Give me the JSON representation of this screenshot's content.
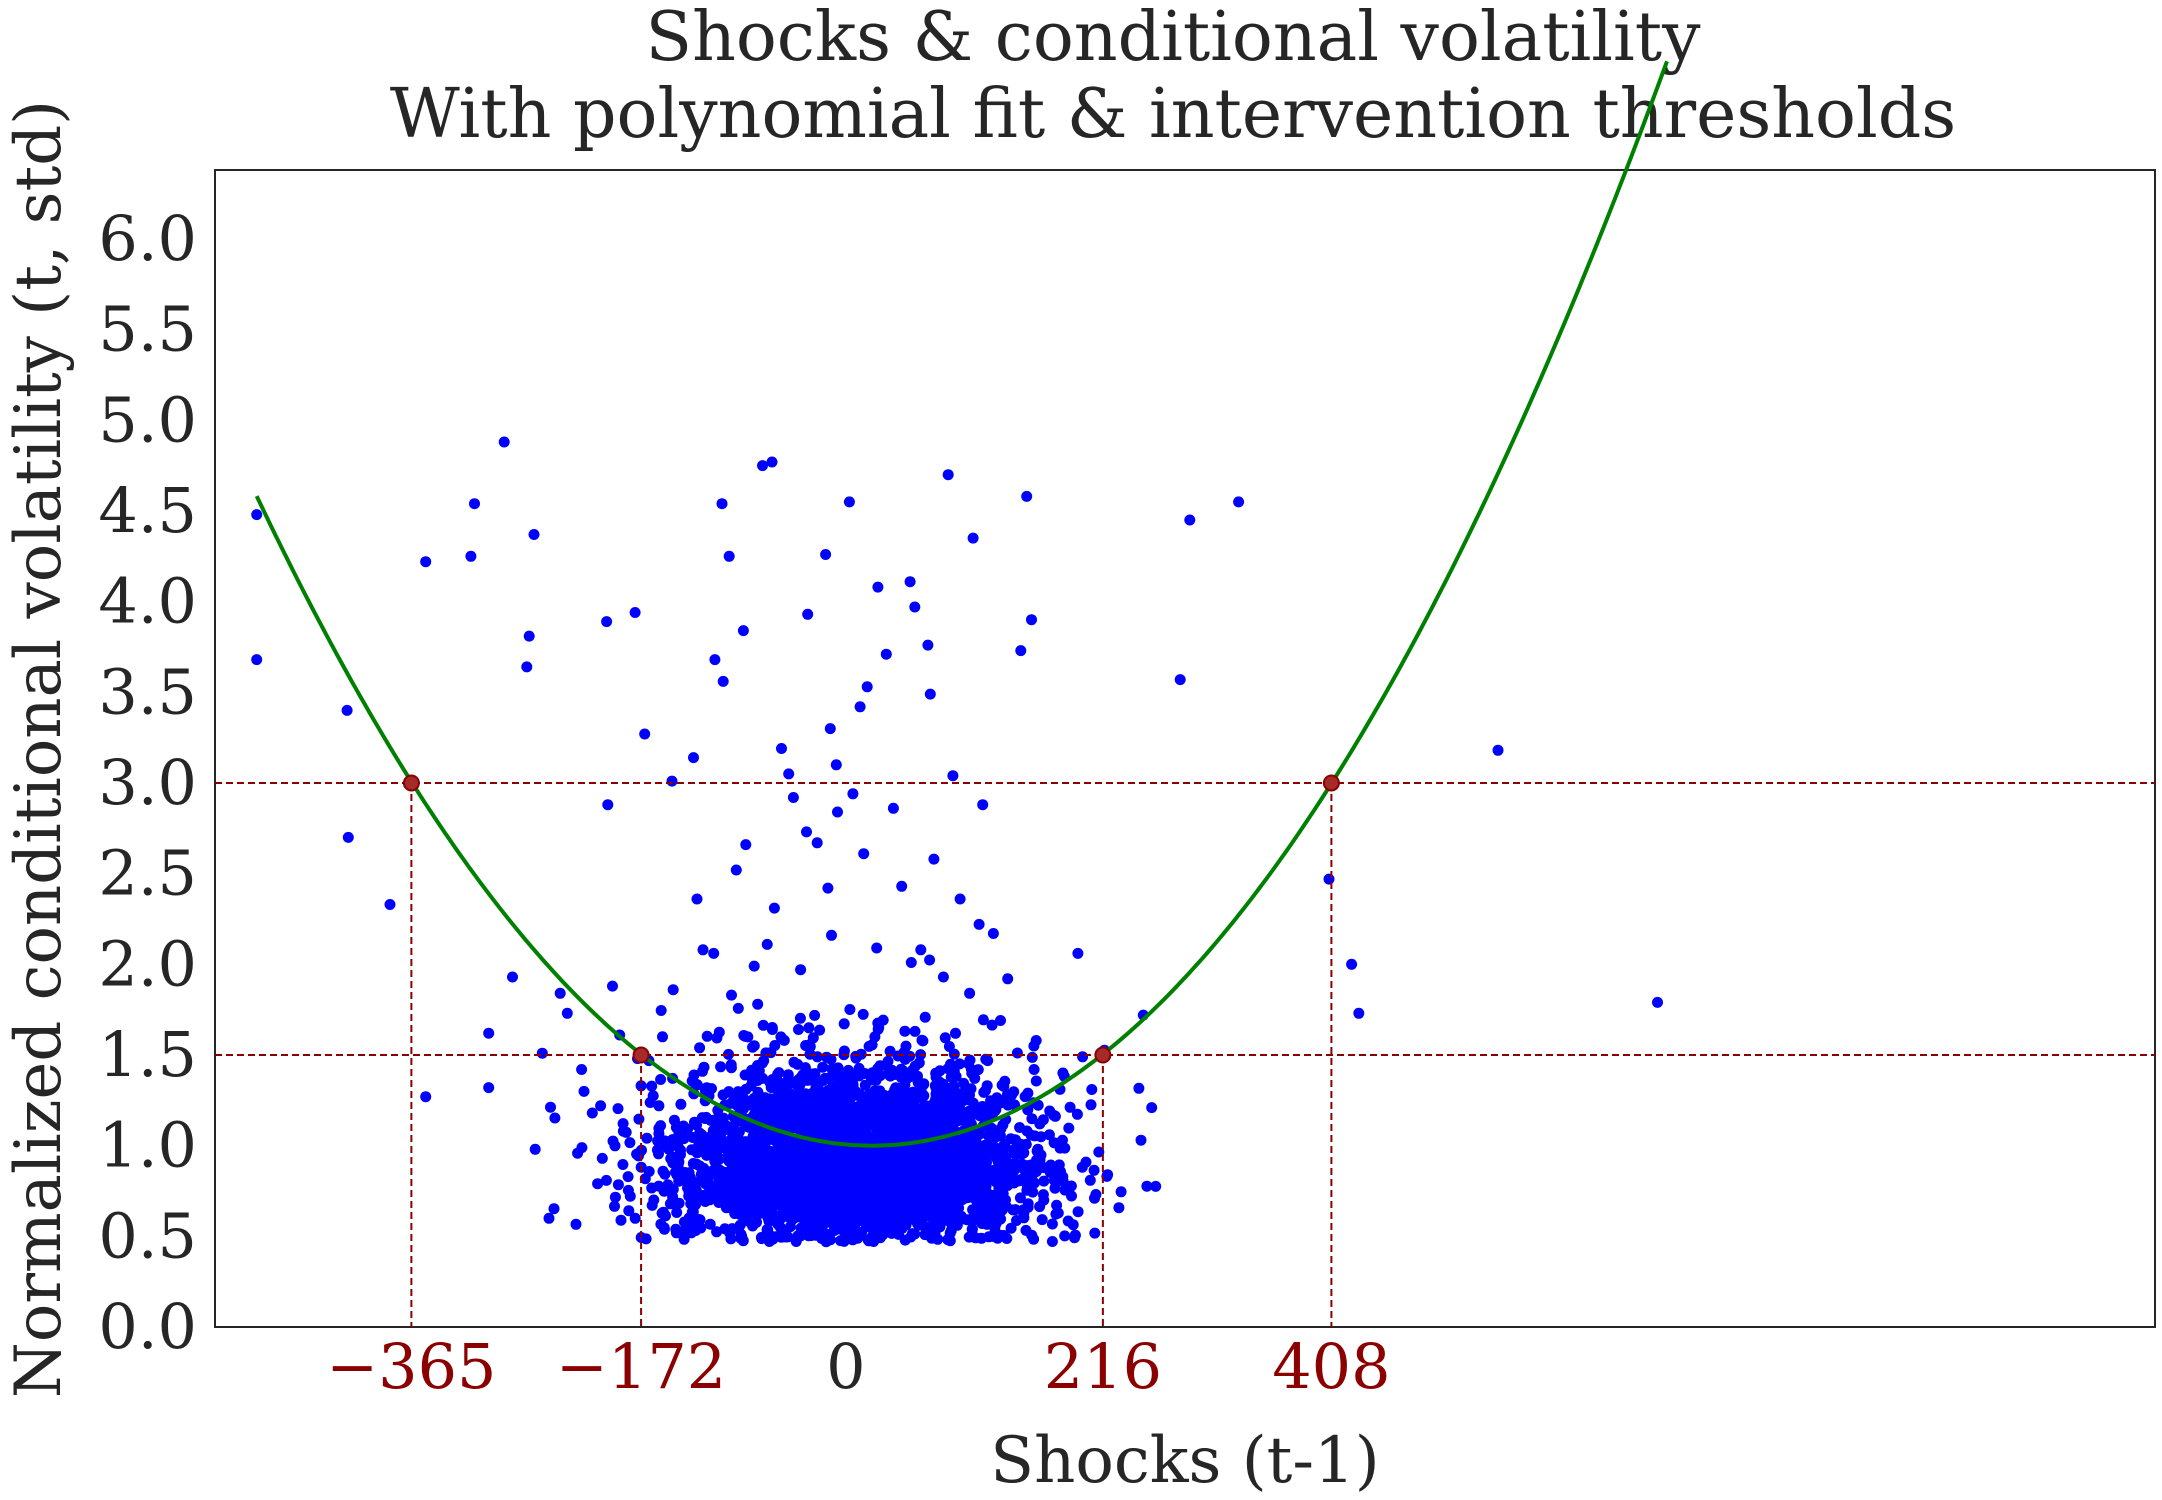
{
  "chart_data": {
    "type": "scatter",
    "title": "Shocks & conditional volatility",
    "subtitle": "With polynomial fit & intervention thresholds",
    "xlabel": "Shocks (t-1)",
    "ylabel": "Normalized conditional volatility (t, std)",
    "xlim": [
      -530,
      1100
    ],
    "ylim": [
      0,
      6.38
    ],
    "grid": false,
    "yticks": [
      0.0,
      0.5,
      1.0,
      1.5,
      2.0,
      2.5,
      3.0,
      3.5,
      4.0,
      4.5,
      5.0,
      5.5,
      6.0
    ],
    "ytick_labels": [
      "0.0",
      "0.5",
      "1.0",
      "1.5",
      "2.0",
      "2.5",
      "3.0",
      "3.5",
      "4.0",
      "4.5",
      "5.0",
      "5.5",
      "6.0"
    ],
    "xticks": [
      {
        "value": -365,
        "label": "−365",
        "color": "#8b0000"
      },
      {
        "value": -172,
        "label": "−172",
        "color": "#8b0000"
      },
      {
        "value": 0,
        "label": "0",
        "color": "#262626"
      },
      {
        "value": 216,
        "label": "216",
        "color": "#8b0000"
      },
      {
        "value": 408,
        "label": "408",
        "color": "#8b0000"
      }
    ],
    "thresholds": {
      "levels": [
        1.5,
        3.0
      ],
      "color": "#8b0000",
      "points": [
        {
          "x": -365,
          "y": 3.0
        },
        {
          "x": -172,
          "y": 1.5
        },
        {
          "x": 216,
          "y": 1.5
        },
        {
          "x": 408,
          "y": 3.0
        }
      ]
    },
    "fit": {
      "type": "polynomial",
      "degree": 2,
      "coefficients": [
        1.0,
        0.0,
        1.34e-05
      ],
      "vertex_x": 22,
      "x_range": [
        -495,
        690
      ],
      "color": "#008000"
    },
    "series": [
      {
        "type": "scatter",
        "color": "#0000ff",
        "points": [
          [
            -495,
            4.48
          ],
          [
            -495,
            3.68
          ],
          [
            -419,
            3.4
          ],
          [
            -418,
            2.7
          ],
          [
            -383,
            2.33
          ],
          [
            -353,
            4.22
          ],
          [
            -353,
            1.27
          ],
          [
            -312,
            4.54
          ],
          [
            -315,
            4.25
          ],
          [
            -300,
            1.32
          ],
          [
            -287,
            4.88
          ],
          [
            -280,
            1.93
          ],
          [
            -266,
            3.81
          ],
          [
            -268,
            3.64
          ],
          [
            -262,
            4.37
          ],
          [
            -240,
            1.84
          ],
          [
            -234,
            1.73
          ],
          [
            -196,
            1.88
          ],
          [
            -201,
            3.89
          ],
          [
            -206,
            1.22
          ],
          [
            -213,
            1.18
          ],
          [
            -175,
            1.48
          ],
          [
            -172,
            1.33
          ],
          [
            -169,
            3.27
          ],
          [
            -157,
            1.22
          ],
          [
            -154,
            1.6
          ],
          [
            -142,
            1.11
          ],
          [
            -132,
            0.85
          ],
          [
            -128,
            3.14
          ],
          [
            -110,
            3.68
          ],
          [
            -104,
            4.54
          ],
          [
            -98,
            4.25
          ],
          [
            -86,
            3.84
          ],
          [
            -70,
            4.75
          ],
          [
            -62,
            4.77
          ],
          [
            -54,
            3.19
          ],
          [
            -48,
            3.05
          ],
          [
            -33,
            2.73
          ],
          [
            -32,
            3.93
          ],
          [
            -17,
            4.26
          ],
          [
            -13,
            3.3
          ],
          [
            -8,
            3.1
          ],
          [
            -7,
            2.84
          ],
          [
            3,
            4.55
          ],
          [
            12,
            3.42
          ],
          [
            18,
            3.53
          ],
          [
            27,
            4.08
          ],
          [
            34,
            3.71
          ],
          [
            54,
            4.11
          ],
          [
            58,
            3.97
          ],
          [
            69,
            3.76
          ],
          [
            71,
            3.49
          ],
          [
            86,
            4.7
          ],
          [
            90,
            3.04
          ],
          [
            107,
            4.35
          ],
          [
            115,
            2.88
          ],
          [
            147,
            3.73
          ],
          [
            152,
            4.58
          ],
          [
            156,
            3.9
          ],
          [
            195,
            2.06
          ],
          [
            209,
            0.71
          ],
          [
            220,
            0.84
          ],
          [
            248,
            1.03
          ],
          [
            257,
            1.21
          ],
          [
            281,
            3.57
          ],
          [
            289,
            4.45
          ],
          [
            330,
            4.55
          ],
          [
            406,
            2.47
          ],
          [
            425,
            2.0
          ],
          [
            431,
            1.73
          ],
          [
            548,
            3.18
          ],
          [
            682,
            1.79
          ],
          [
            -200,
            2.88
          ],
          [
            -177,
            3.94
          ],
          [
            -146,
            3.01
          ],
          [
            -125,
            2.36
          ],
          [
            -120,
            2.08
          ],
          [
            -111,
            2.06
          ],
          [
            -103,
            3.56
          ],
          [
            -92,
            2.52
          ],
          [
            -84,
            2.66
          ],
          [
            -77,
            1.99
          ],
          [
            -60,
            2.31
          ],
          [
            -44,
            2.92
          ],
          [
            -24,
            2.67
          ],
          [
            -15,
            2.42
          ],
          [
            6,
            2.94
          ],
          [
            15,
            2.61
          ],
          [
            40,
            2.86
          ],
          [
            47,
            2.43
          ],
          [
            63,
            2.08
          ],
          [
            74,
            2.58
          ],
          [
            96,
            2.36
          ],
          [
            112,
            2.22
          ],
          [
            124,
            2.17
          ],
          [
            136,
            1.92
          ],
          [
            -300,
            1.62
          ],
          [
            -255,
            1.51
          ],
          [
            -222,
            1.42
          ],
          [
            -190,
            1.61
          ],
          [
            -145,
            1.86
          ],
          [
            -96,
            1.83
          ],
          [
            -66,
            2.11
          ],
          [
            -38,
            1.97
          ],
          [
            -12,
            2.16
          ],
          [
            26,
            2.09
          ],
          [
            55,
            2.01
          ],
          [
            82,
            1.93
          ],
          [
            104,
            1.84
          ],
          [
            130,
            1.69
          ],
          [
            160,
            1.58
          ],
          [
            180,
            1.31
          ],
          [
            199,
            1.49
          ],
          [
            166,
            0.73
          ],
          [
            152,
            0.89
          ],
          [
            128,
            0.91
          ],
          [
            -146,
            1.02
          ],
          [
            -118,
            0.79
          ],
          [
            -96,
            0.66
          ],
          [
            -55,
            0.55
          ],
          [
            -20,
            0.5
          ],
          [
            12,
            0.52
          ],
          [
            44,
            0.57
          ],
          [
            76,
            0.62
          ],
          [
            100,
            0.71
          ],
          [
            250,
            1.72
          ],
          [
            -261,
            0.98
          ]
        ],
        "core_cluster": {
          "center_x": 5,
          "center_y": 0.88,
          "spread_x": 75,
          "spread_y": 0.26,
          "count": 3400,
          "y_min": 0.47
        }
      }
    ]
  }
}
